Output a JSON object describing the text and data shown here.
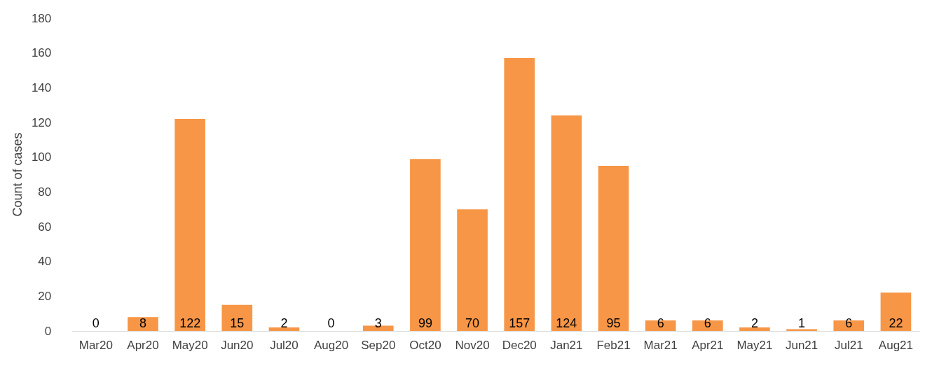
{
  "chart_data": {
    "type": "bar",
    "ylabel": "Count of cases",
    "categories": [
      "Mar20",
      "Apr20",
      "May20",
      "Jun20",
      "Jul20",
      "Aug20",
      "Sep20",
      "Oct20",
      "Nov20",
      "Dec20",
      "Jan21",
      "Feb21",
      "Mar21",
      "Apr21",
      "May21",
      "Jun21",
      "Jul21",
      "Aug21"
    ],
    "values": [
      0,
      8,
      122,
      15,
      2,
      0,
      3,
      99,
      70,
      157,
      124,
      95,
      6,
      6,
      2,
      1,
      6,
      22
    ],
    "color": "#f79646",
    "ylim": [
      0,
      180
    ],
    "yticks": [
      0,
      20,
      40,
      60,
      80,
      100,
      120,
      140,
      160,
      180
    ],
    "grid": false,
    "data_labels": true
  }
}
